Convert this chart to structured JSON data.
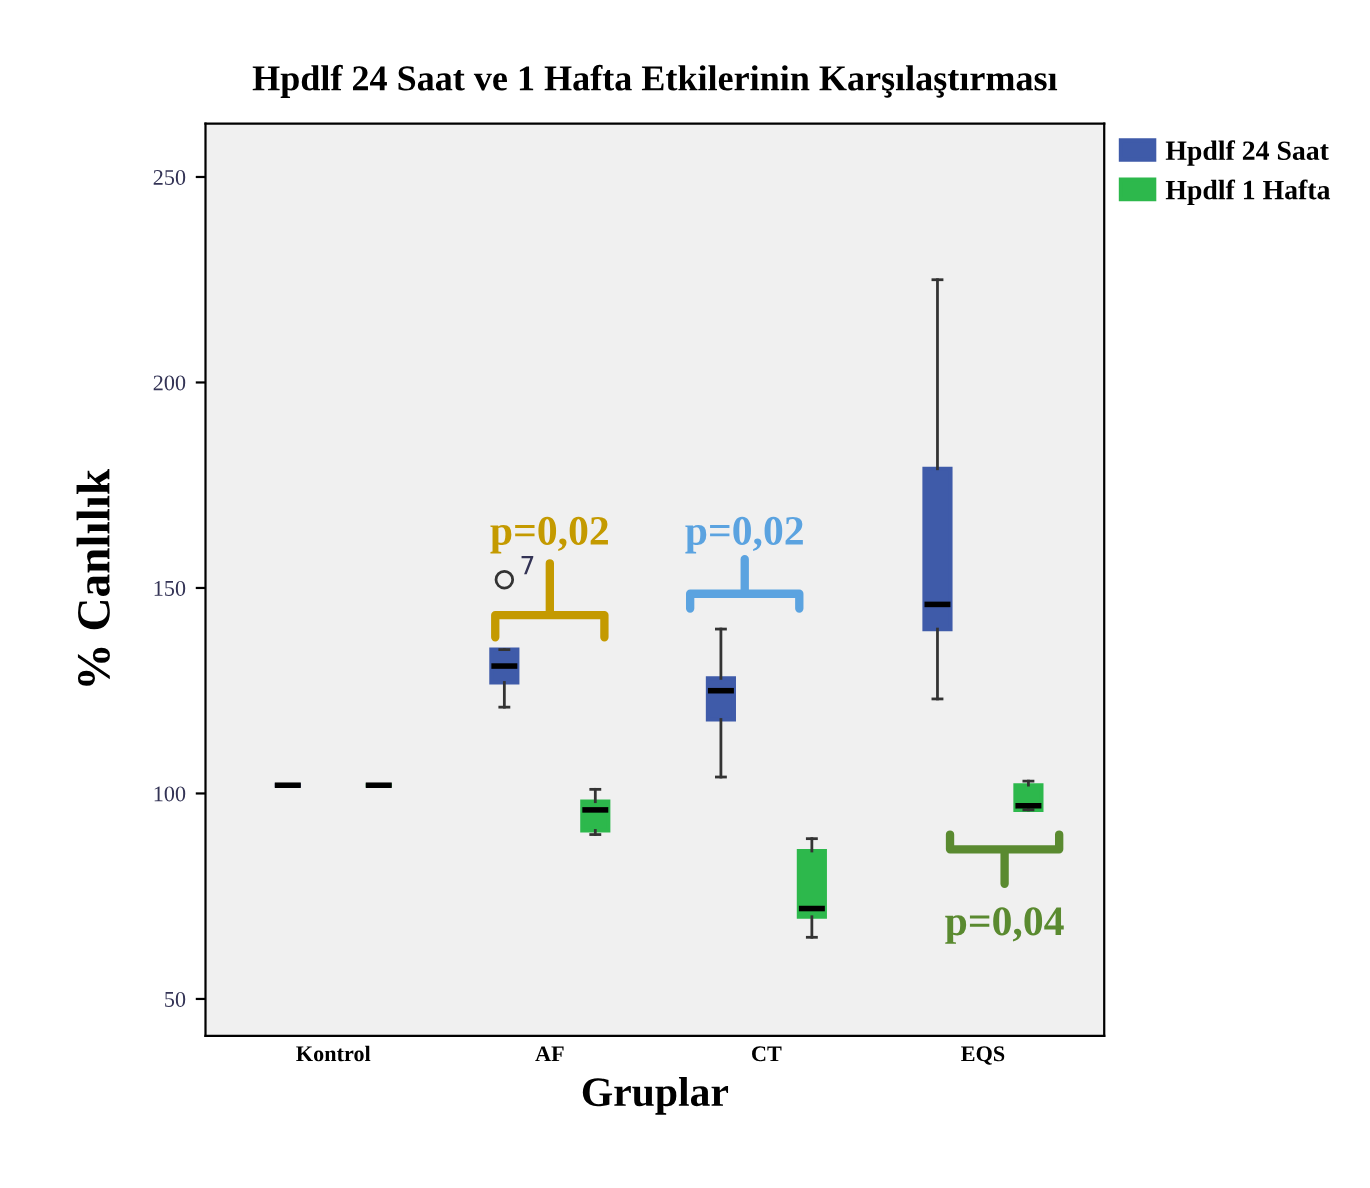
{
  "chart_data": {
    "type": "box",
    "title": "Hpdlf 24 Saat ve 1 Hafta Etkilerinin Karşılaştırması",
    "xlabel": "Gruplar",
    "ylabel": "% Canlılık",
    "categories": [
      "Kontrol",
      "AF",
      "CT",
      "EQS"
    ],
    "series": [
      {
        "name": "Hpdlf 24 Saat",
        "color": "#3f5ba9",
        "boxes": [
          {
            "low": 102,
            "q1": 102,
            "median": 102,
            "q3": 102,
            "high": 102
          },
          {
            "low": 121,
            "q1": 127,
            "median": 131,
            "q3": 135,
            "high": 135,
            "outliers": [
              152
            ]
          },
          {
            "low": 104,
            "q1": 118,
            "median": 125,
            "q3": 128,
            "high": 140
          },
          {
            "low": 123,
            "q1": 140,
            "median": 146,
            "q3": 179,
            "high": 225
          }
        ]
      },
      {
        "name": "Hpdlf 1 Hafta",
        "color": "#2db84c",
        "boxes": [
          {
            "low": 102,
            "q1": 102,
            "median": 102,
            "q3": 102,
            "high": 102
          },
          {
            "low": 90,
            "q1": 91,
            "median": 96,
            "q3": 98,
            "high": 101
          },
          {
            "low": 65,
            "q1": 70,
            "median": 72,
            "q3": 86,
            "high": 89
          },
          {
            "low": 96,
            "q1": 96,
            "median": 97,
            "q3": 102,
            "high": 103
          }
        ]
      }
    ],
    "ylim": [
      41,
      263
    ],
    "yticks": [
      50,
      100,
      150,
      200,
      250
    ],
    "grid": false,
    "legend": "top right",
    "annotations": [
      "7",
      "p=0,02",
      "p=0,02",
      "p=0,04"
    ]
  }
}
